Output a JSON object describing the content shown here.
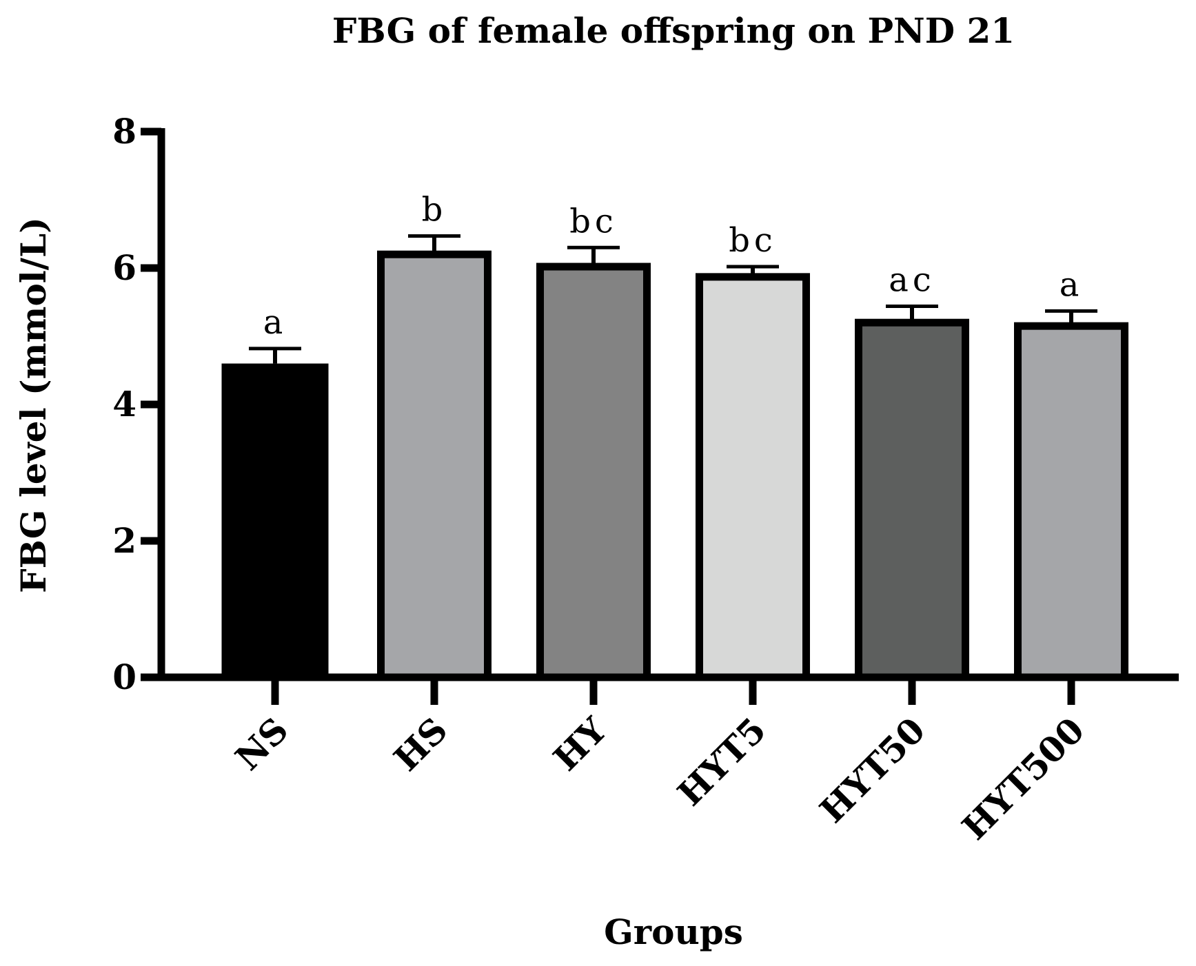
{
  "chart_data": {
    "type": "bar",
    "title": "FBG of female offspring on PND 21",
    "xlabel": "Groups",
    "ylabel": "FBG level (mmol/L)",
    "ylim": [
      0,
      8
    ],
    "yticks": [
      0,
      2,
      4,
      6,
      8
    ],
    "categories": [
      "NS",
      "HS",
      "HY",
      "HYT5",
      "HYT50",
      "HYT500"
    ],
    "values": [
      4.6,
      6.2,
      6.02,
      5.87,
      5.2,
      5.15
    ],
    "errors": [
      0.22,
      0.27,
      0.28,
      0.15,
      0.24,
      0.22
    ],
    "significance": [
      "a",
      "b",
      "bc",
      "bc",
      "ac",
      "a"
    ],
    "colors": [
      "#000000",
      "#a5a6a9",
      "#838383",
      "#d7d8d7",
      "#5d5f5e",
      "#a5a6a9"
    ]
  }
}
